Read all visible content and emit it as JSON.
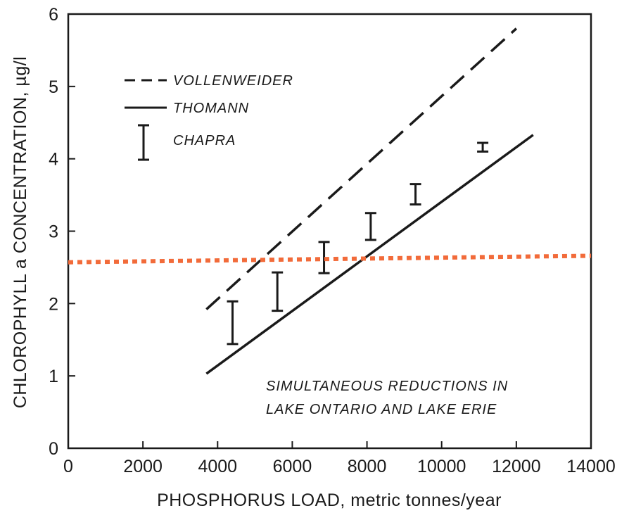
{
  "chart_data": {
    "type": "line",
    "title": "",
    "xlabel": "PHOSPHORUS LOAD, metric tonnes/year",
    "ylabel": "CHLOROPHYLL a CONCENTRATION, µg/l",
    "xlim": [
      0,
      14000
    ],
    "ylim": [
      0,
      6
    ],
    "x_ticks": [
      "0",
      "2000",
      "4000",
      "6000",
      "8000",
      "10000",
      "12000",
      "14000"
    ],
    "y_ticks": [
      "0",
      "1",
      "2",
      "3",
      "4",
      "5",
      "6"
    ],
    "series": [
      {
        "name": "VOLLENWEIDER",
        "style": "dashed",
        "color": "#1a1a1a",
        "x": [
          3700,
          12000
        ],
        "y": [
          1.92,
          5.8
        ]
      },
      {
        "name": "THOMANN",
        "style": "solid",
        "color": "#1a1a1a",
        "x": [
          3700,
          12450
        ],
        "y": [
          1.03,
          4.33
        ]
      },
      {
        "name": "CHAPRA",
        "style": "errorbar",
        "color": "#1a1a1a",
        "points": [
          {
            "x": 4400,
            "low": 1.44,
            "high": 2.03
          },
          {
            "x": 5600,
            "low": 1.9,
            "high": 2.43
          },
          {
            "x": 6850,
            "low": 2.42,
            "high": 2.85
          },
          {
            "x": 8100,
            "low": 2.88,
            "high": 3.25
          },
          {
            "x": 9300,
            "low": 3.37,
            "high": 3.65
          },
          {
            "x": 11100,
            "low": 4.1,
            "high": 4.22
          }
        ]
      }
    ],
    "reference_line": {
      "style": "dotted",
      "color": "#f26b3a",
      "x": [
        0,
        14000
      ],
      "y": [
        2.57,
        2.66
      ]
    },
    "annotation": [
      "SIMULTANEOUS REDUCTIONS IN",
      "LAKE ONTARIO AND LAKE ERIE"
    ],
    "legend": {
      "placement": "top-left",
      "items": [
        "VOLLENWEIDER",
        "THOMANN",
        "CHAPRA"
      ]
    },
    "grid": false
  }
}
